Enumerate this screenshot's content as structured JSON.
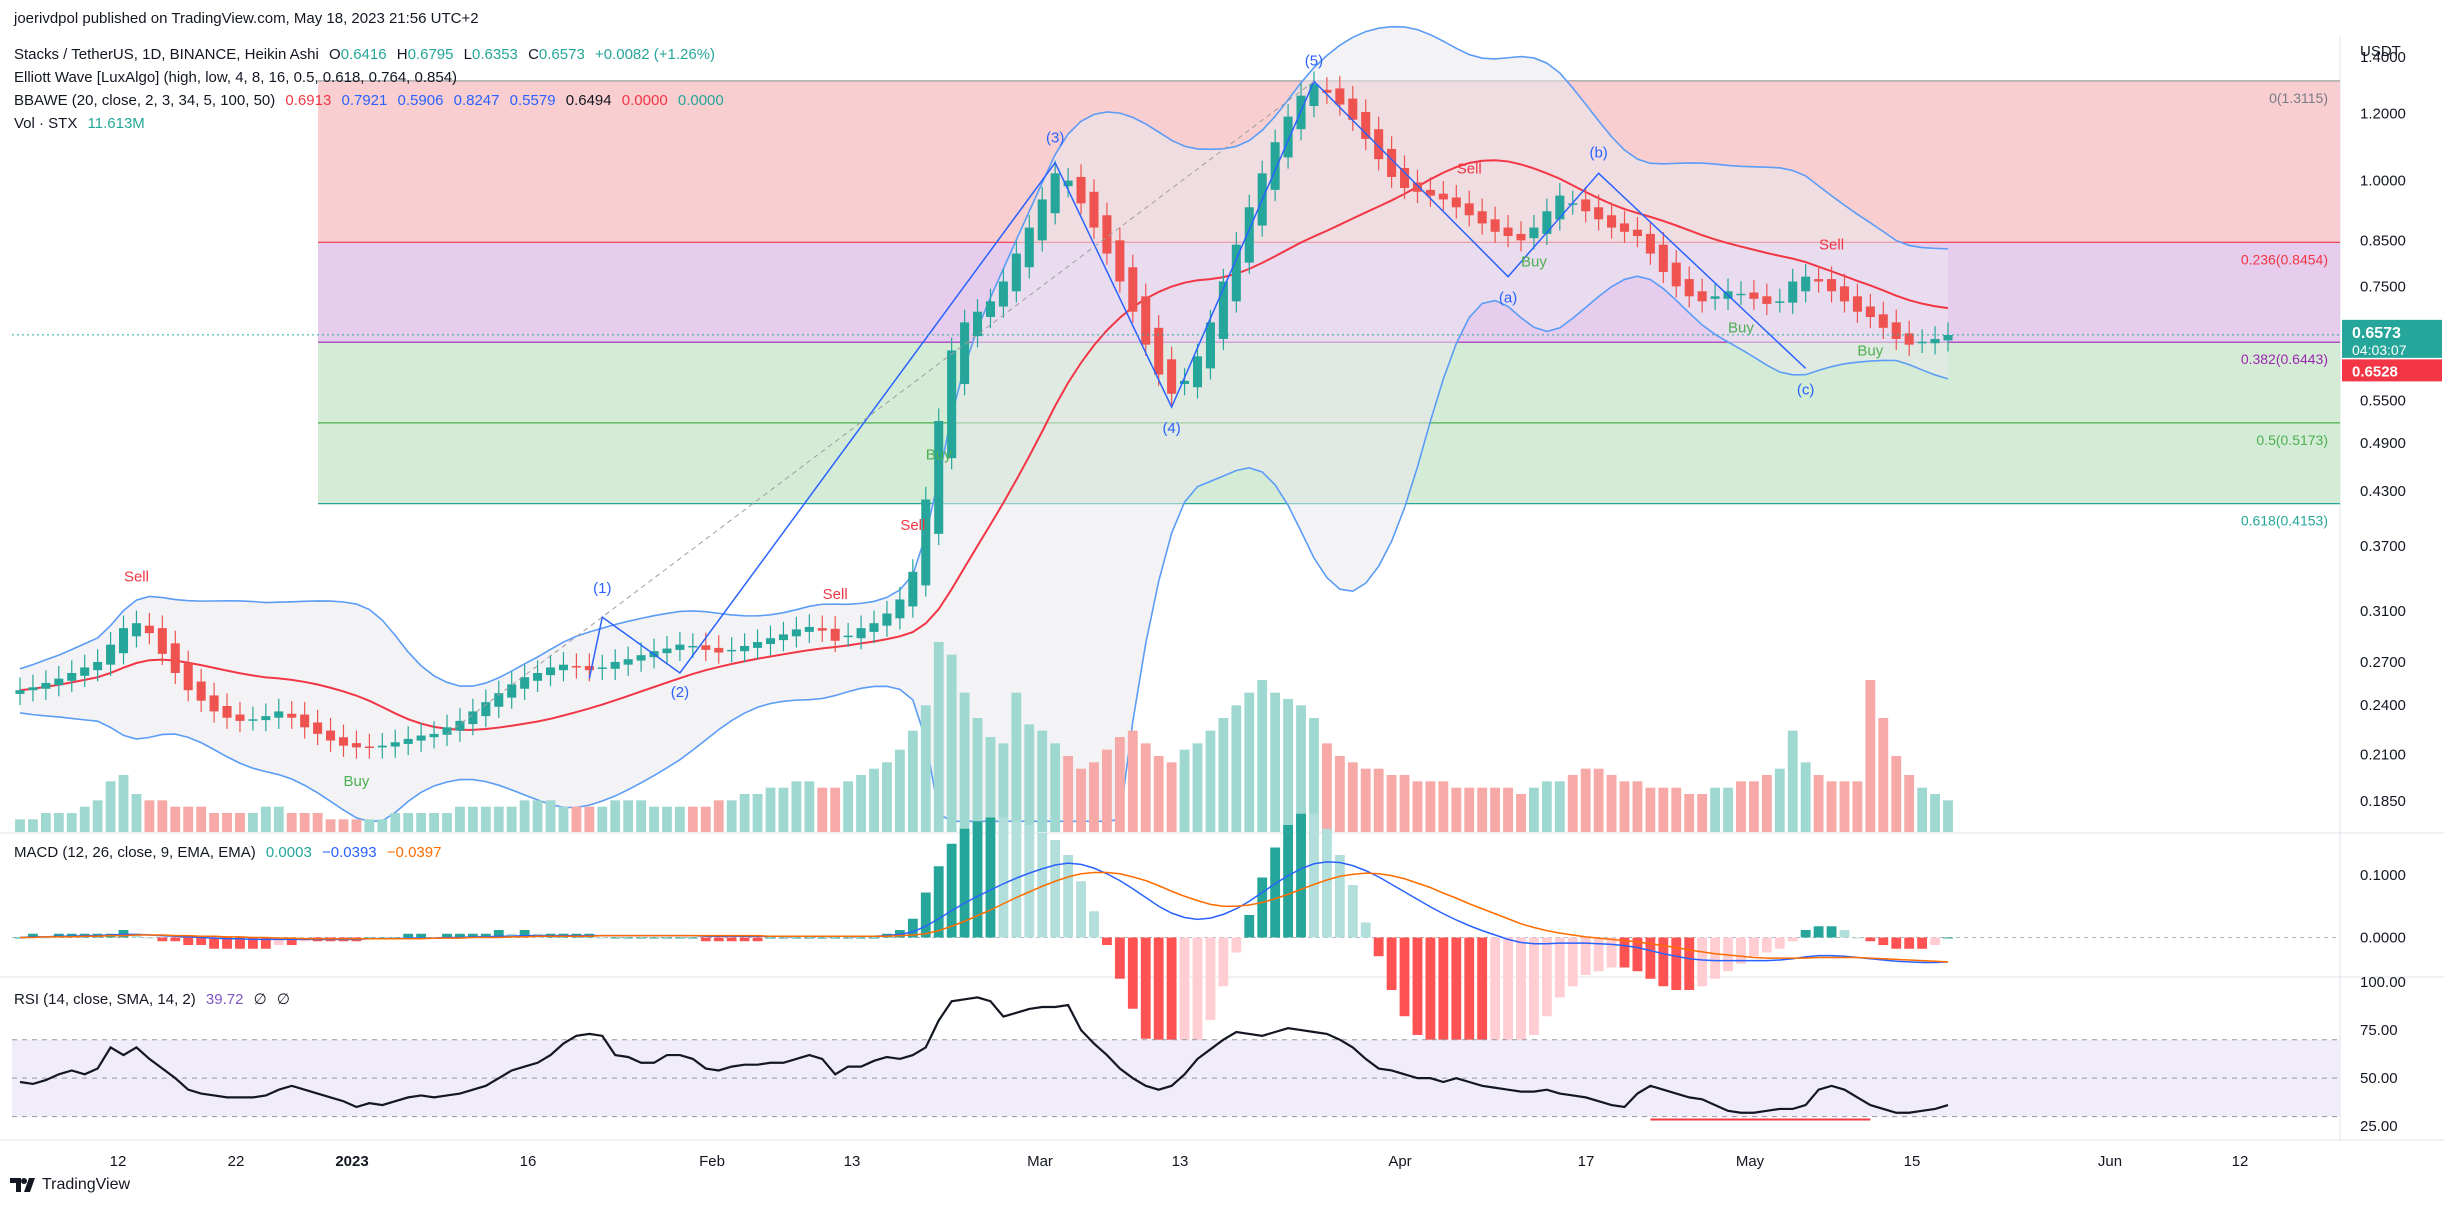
{
  "header": {
    "published": "joerivdpol published on TradingView.com, May 18, 2023 21:56 UTC+2",
    "symbol": "Stacks / TetherUS, 1D, BINANCE, Heikin Ashi",
    "o_label": "O",
    "o": "0.6416",
    "h_label": "H",
    "h": "0.6795",
    "l_label": "L",
    "l": "0.6353",
    "c_label": "C",
    "c": "0.6573",
    "chg": "+0.0082 (+1.26%)",
    "ew": "Elliott Wave [LuxAlgo] (high, low, 4, 8, 16, 0.5, 0.618, 0.764, 0.854)",
    "bbawe": "BBAWE (20, close, 2, 3, 34, 5, 100, 50)",
    "bbawe_vals": [
      "0.6913",
      "0.7921",
      "0.5906",
      "0.8247",
      "0.5579",
      "0.6494",
      "0.0000",
      "0.0000"
    ],
    "vol": "Vol · STX",
    "vol_val": "11.613M",
    "macd": "MACD (12, 26, close, 9, EMA, EMA)",
    "macd_vals": [
      "0.0003",
      "−0.0393",
      "−0.0397"
    ],
    "rsi": "RSI (14, close, SMA, 14, 2)",
    "rsi_vals": [
      "39.72",
      "∅",
      "∅"
    ]
  },
  "colors": {
    "up": "#26a69a",
    "down": "#ef5350",
    "macd": "#2962ff",
    "signal": "#ff6d00",
    "fib_red": "#f8c6c8",
    "fib_purple": "#e2c4ea",
    "fib_green": "#cde9cf",
    "fib_teal": "#b5e0d7",
    "band": "#5b9cf6",
    "basis": "#f23645",
    "ew": "#2962ff",
    "rsi_bg": "#f0ecfa"
  },
  "chart_data": {
    "type": "candlestick",
    "currency": "USDT",
    "scale": "log",
    "ylim": [
      0.17,
      1.45
    ],
    "y_ticks": [
      "1.4000",
      "1.2000",
      "1.0000",
      "0.8500",
      "0.7500",
      "0.6573",
      "0.5500",
      "0.4900",
      "0.4300",
      "0.3700",
      "0.3100",
      "0.2700",
      "0.2400",
      "0.2100",
      "0.1850"
    ],
    "last_price": "0.6573",
    "countdown": "04:03:07",
    "basis_price": "0.6528",
    "x_ticks": [
      "12",
      "22",
      "2023",
      "16",
      "Feb",
      "13",
      "Mar",
      "13",
      "Apr",
      "17",
      "May",
      "15",
      "Jun",
      "12"
    ],
    "fib_levels": [
      {
        "label": "0(1.3115)",
        "value": 1.3115
      },
      {
        "label": "0.236(0.8454)",
        "value": 0.8454
      },
      {
        "label": "0.382(0.6443)",
        "value": 0.6443
      },
      {
        "label": "0.5(0.5173)",
        "value": 0.5173
      },
      {
        "label": "0.618(0.4153)",
        "value": 0.4153
      }
    ],
    "wave_labels": [
      "(1)",
      "(2)",
      "(3)",
      "(4)",
      "(5)",
      "(a)",
      "(b)",
      "(c)"
    ],
    "signals": [
      {
        "text": "Sell",
        "type": "sell"
      },
      {
        "text": "Buy",
        "type": "buy"
      },
      {
        "text": "Sell",
        "type": "sell"
      },
      {
        "text": "Sell",
        "type": "sell"
      },
      {
        "text": "Buy",
        "type": "buy"
      },
      {
        "text": "Sell",
        "type": "sell"
      },
      {
        "text": "Buy",
        "type": "buy"
      },
      {
        "text": "Buy",
        "type": "buy"
      },
      {
        "text": "Sell",
        "type": "sell"
      },
      {
        "text": "Buy",
        "type": "buy"
      }
    ],
    "close": [
      0.25,
      0.252,
      0.255,
      0.258,
      0.262,
      0.266,
      0.27,
      0.283,
      0.296,
      0.3,
      0.292,
      0.276,
      0.262,
      0.25,
      0.243,
      0.236,
      0.232,
      0.23,
      0.231,
      0.233,
      0.236,
      0.232,
      0.226,
      0.222,
      0.218,
      0.215,
      0.214,
      0.214,
      0.215,
      0.217,
      0.219,
      0.221,
      0.222,
      0.226,
      0.23,
      0.236,
      0.242,
      0.248,
      0.254,
      0.259,
      0.262,
      0.266,
      0.268,
      0.266,
      0.264,
      0.266,
      0.27,
      0.272,
      0.275,
      0.278,
      0.28,
      0.283,
      0.282,
      0.279,
      0.277,
      0.279,
      0.282,
      0.285,
      0.288,
      0.291,
      0.295,
      0.297,
      0.294,
      0.286,
      0.29,
      0.296,
      0.3,
      0.308,
      0.32,
      0.345,
      0.42,
      0.52,
      0.63,
      0.68,
      0.7,
      0.72,
      0.76,
      0.82,
      0.88,
      0.95,
      1.02,
      1.0,
      0.94,
      0.88,
      0.82,
      0.76,
      0.7,
      0.64,
      0.59,
      0.56,
      0.58,
      0.62,
      0.68,
      0.76,
      0.84,
      0.93,
      1.02,
      1.11,
      1.19,
      1.26,
      1.3,
      1.27,
      1.23,
      1.18,
      1.12,
      1.06,
      1.01,
      0.98,
      0.97,
      0.96,
      0.95,
      0.93,
      0.91,
      0.89,
      0.87,
      0.86,
      0.85,
      0.88,
      0.92,
      0.96,
      0.94,
      0.92,
      0.9,
      0.88,
      0.87,
      0.86,
      0.82,
      0.78,
      0.75,
      0.73,
      0.72,
      0.73,
      0.74,
      0.735,
      0.725,
      0.715,
      0.72,
      0.76,
      0.77,
      0.76,
      0.74,
      0.72,
      0.7,
      0.69,
      0.67,
      0.65,
      0.64,
      0.645,
      0.65,
      0.657
    ],
    "volume_m": [
      2,
      2,
      3,
      3,
      3,
      4,
      5,
      8,
      9,
      6,
      5,
      5,
      4,
      4,
      4,
      3,
      3,
      3,
      3,
      4,
      4,
      3,
      3,
      3,
      2,
      2,
      2,
      2,
      2,
      3,
      3,
      3,
      3,
      3,
      4,
      4,
      4,
      4,
      4,
      5,
      5,
      5,
      4,
      4,
      4,
      4,
      5,
      5,
      5,
      4,
      4,
      4,
      4,
      4,
      5,
      5,
      6,
      6,
      7,
      7,
      8,
      8,
      7,
      7,
      8,
      9,
      10,
      11,
      13,
      16,
      20,
      30,
      28,
      22,
      18,
      15,
      14,
      22,
      17,
      16,
      14,
      12,
      10,
      11,
      13,
      15,
      16,
      14,
      12,
      11,
      13,
      14,
      16,
      18,
      20,
      22,
      24,
      22,
      21,
      20,
      18,
      14,
      12,
      11,
      10,
      10,
      9,
      9,
      8,
      8,
      8,
      7,
      7,
      7,
      7,
      7,
      6,
      7,
      8,
      8,
      9,
      10,
      10,
      9,
      8,
      8,
      7,
      7,
      7,
      6,
      6,
      7,
      7,
      8,
      8,
      9,
      10,
      16,
      11,
      9,
      8,
      8,
      8,
      24,
      18,
      12,
      9,
      7,
      6,
      5,
      5,
      5
    ],
    "macd": [
      0.0,
      0.001,
      0.001,
      0.002,
      0.002,
      0.003,
      0.003,
      0.004,
      0.005,
      0.005,
      0.004,
      0.003,
      0.002,
      0.001,
      0.0,
      -0.001,
      -0.002,
      -0.002,
      -0.003,
      -0.003,
      -0.003,
      -0.003,
      -0.003,
      -0.003,
      -0.003,
      -0.003,
      -0.003,
      -0.002,
      -0.002,
      -0.002,
      -0.001,
      -0.001,
      -0.001,
      0.0,
      0.0,
      0.001,
      0.001,
      0.002,
      0.002,
      0.003,
      0.003,
      0.003,
      0.003,
      0.003,
      0.003,
      0.003,
      0.003,
      0.003,
      0.003,
      0.003,
      0.003,
      0.003,
      0.003,
      0.002,
      0.002,
      0.002,
      0.002,
      0.002,
      0.002,
      0.002,
      0.002,
      0.002,
      0.002,
      0.002,
      0.002,
      0.002,
      0.002,
      0.003,
      0.005,
      0.009,
      0.018,
      0.03,
      0.043,
      0.055,
      0.066,
      0.076,
      0.086,
      0.095,
      0.103,
      0.11,
      0.116,
      0.119,
      0.117,
      0.111,
      0.102,
      0.091,
      0.078,
      0.064,
      0.05,
      0.039,
      0.032,
      0.029,
      0.031,
      0.037,
      0.046,
      0.058,
      0.072,
      0.086,
      0.099,
      0.11,
      0.118,
      0.121,
      0.12,
      0.115,
      0.107,
      0.097,
      0.085,
      0.073,
      0.061,
      0.049,
      0.038,
      0.028,
      0.019,
      0.011,
      0.004,
      -0.003,
      -0.008,
      -0.01,
      -0.01,
      -0.009,
      -0.009,
      -0.009,
      -0.01,
      -0.011,
      -0.013,
      -0.016,
      -0.021,
      -0.026,
      -0.03,
      -0.034,
      -0.036,
      -0.037,
      -0.037,
      -0.037,
      -0.037,
      -0.037,
      -0.036,
      -0.034,
      -0.031,
      -0.029,
      -0.029,
      -0.03,
      -0.032,
      -0.034,
      -0.036,
      -0.038,
      -0.039,
      -0.04,
      -0.04,
      -0.039
    ],
    "signal": [
      0.0,
      0.0,
      0.001,
      0.001,
      0.001,
      0.002,
      0.002,
      0.003,
      0.003,
      0.004,
      0.004,
      0.004,
      0.003,
      0.003,
      0.002,
      0.002,
      0.001,
      0.001,
      0.0,
      0.0,
      -0.001,
      -0.001,
      -0.002,
      -0.002,
      -0.002,
      -0.002,
      -0.002,
      -0.002,
      -0.002,
      -0.002,
      -0.002,
      -0.002,
      -0.001,
      -0.001,
      -0.001,
      0.0,
      0.0,
      0.0,
      0.001,
      0.001,
      0.002,
      0.002,
      0.002,
      0.002,
      0.002,
      0.003,
      0.003,
      0.003,
      0.003,
      0.003,
      0.003,
      0.003,
      0.003,
      0.003,
      0.003,
      0.003,
      0.003,
      0.003,
      0.002,
      0.002,
      0.002,
      0.002,
      0.002,
      0.002,
      0.002,
      0.002,
      0.002,
      0.002,
      0.003,
      0.004,
      0.006,
      0.011,
      0.018,
      0.026,
      0.035,
      0.044,
      0.054,
      0.064,
      0.073,
      0.082,
      0.09,
      0.097,
      0.102,
      0.104,
      0.104,
      0.102,
      0.097,
      0.091,
      0.083,
      0.074,
      0.066,
      0.059,
      0.053,
      0.05,
      0.05,
      0.052,
      0.056,
      0.062,
      0.069,
      0.077,
      0.085,
      0.092,
      0.098,
      0.101,
      0.103,
      0.102,
      0.099,
      0.094,
      0.087,
      0.08,
      0.071,
      0.063,
      0.054,
      0.046,
      0.038,
      0.03,
      0.022,
      0.016,
      0.011,
      0.007,
      0.004,
      0.001,
      -0.001,
      -0.003,
      -0.005,
      -0.007,
      -0.01,
      -0.013,
      -0.016,
      -0.02,
      -0.023,
      -0.026,
      -0.028,
      -0.03,
      -0.032,
      -0.033,
      -0.033,
      -0.033,
      -0.033,
      -0.032,
      -0.032,
      -0.032,
      -0.032,
      -0.033,
      -0.034,
      -0.035,
      -0.036,
      -0.037,
      -0.038,
      -0.039
    ],
    "macd_ylim": [
      -0.06,
      0.14
    ],
    "macd_ticks": [
      "0.1000",
      "0.0000"
    ],
    "rsi": [
      48,
      47,
      49,
      52,
      54,
      52,
      55,
      66,
      62,
      66,
      60,
      55,
      50,
      44,
      42,
      41,
      40,
      40,
      40,
      41,
      44,
      46,
      44,
      42,
      40,
      38,
      35,
      37,
      36,
      38,
      40,
      41,
      40,
      41,
      42,
      44,
      46,
      50,
      54,
      56,
      58,
      62,
      68,
      72,
      73,
      72,
      62,
      61,
      58,
      58,
      62,
      62,
      60,
      55,
      54,
      56,
      57,
      57,
      58,
      58,
      60,
      62,
      60,
      52,
      56,
      56,
      59,
      61,
      60,
      62,
      66,
      80,
      90,
      91,
      92,
      90,
      82,
      84,
      86,
      87,
      87,
      88,
      75,
      68,
      62,
      55,
      50,
      46,
      44,
      46,
      52,
      60,
      65,
      70,
      74,
      73,
      72,
      74,
      76,
      75,
      74,
      73,
      70,
      66,
      60,
      55,
      54,
      52,
      50,
      50,
      48,
      50,
      48,
      46,
      45,
      44,
      43,
      43,
      44,
      42,
      41,
      40,
      38,
      36,
      35,
      42,
      46,
      44,
      42,
      40,
      39,
      36,
      33,
      32,
      32,
      33,
      34,
      34,
      36,
      44,
      46,
      44,
      40,
      36,
      34,
      32,
      32,
      33,
      34,
      36,
      38,
      40
    ],
    "rsi_ylim": [
      22,
      100
    ],
    "rsi_ticks": [
      "100.00",
      "75.00",
      "50.00",
      "25.00"
    ]
  }
}
